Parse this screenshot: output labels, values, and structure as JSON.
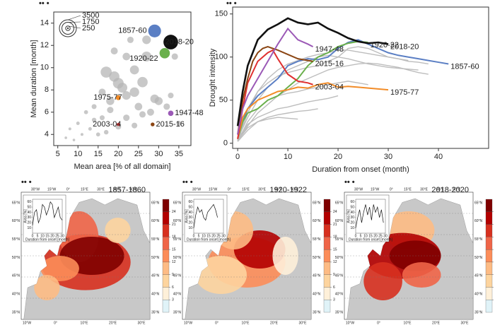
{
  "panel_mark": "•• •",
  "map_labels": {
    "top": [
      "30°W",
      "15°W",
      "0°",
      "15°E",
      "30°E",
      "45°E",
      "60°E"
    ],
    "left": [
      "65°N",
      "60°N",
      "55°N",
      "50°N",
      "45°N",
      "40°N",
      "35°N"
    ],
    "bottom": [
      "10°W",
      "0°",
      "10°E",
      "20°E",
      "30°E"
    ]
  },
  "chart_data": [
    {
      "type": "scatter",
      "xlabel": "Mean area [% of all domain]",
      "ylabel": "Mean duration [month]",
      "xlim": [
        4,
        38
      ],
      "ylim": [
        3,
        15
      ],
      "xticks": [
        5,
        10,
        15,
        20,
        25,
        30,
        35
      ],
      "yticks": [
        4,
        6,
        8,
        10,
        12,
        14
      ],
      "size_legend": [
        3500,
        1750,
        250
      ],
      "series": [
        {
          "color": "#b5b5b5",
          "x": [
            17,
            19,
            21,
            22,
            24,
            26,
            24,
            27,
            27,
            22,
            19,
            23,
            20,
            18,
            16,
            25,
            29,
            30,
            28,
            32,
            26,
            22,
            24,
            20,
            16,
            14,
            12,
            10,
            8,
            11,
            13,
            7,
            9,
            15,
            17,
            14,
            35,
            33,
            34,
            18
          ],
          "values": [
            9.6,
            9.2,
            8.2,
            7.5,
            7.8,
            8.7,
            9.8,
            12.5,
            11,
            11,
            11.5,
            12.5,
            8.6,
            7,
            7.8,
            6.5,
            7.2,
            7,
            6,
            6.5,
            5.8,
            5.5,
            4.8,
            4.7,
            5.5,
            6.5,
            6,
            5,
            4.5,
            4,
            4.5,
            3.7,
            3.5,
            4,
            4.2,
            5.3,
            5,
            7.5,
            11,
            6.2
          ],
          "sizes": [
            1500,
            1300,
            1200,
            900,
            1100,
            1300,
            1000,
            900,
            1200,
            700,
            600,
            500,
            1400,
            800,
            600,
            700,
            900,
            800,
            600,
            500,
            500,
            500,
            400,
            400,
            300,
            300,
            200,
            150,
            100,
            100,
            150,
            80,
            80,
            200,
            250,
            250,
            300,
            400,
            500,
            500
          ]
        },
        {
          "name": "1857-60",
          "color": "#5b7fc4",
          "x": [
            29
          ],
          "values": [
            13.3
          ],
          "sizes": [
            2000
          ]
        },
        {
          "name": "2018-20",
          "color": "#111111",
          "x": [
            33
          ],
          "values": [
            12.3
          ],
          "sizes": [
            2600
          ]
        },
        {
          "name": "1920-22",
          "color": "#6ab04c",
          "x": [
            31.5
          ],
          "values": [
            11.3
          ],
          "sizes": [
            1300
          ]
        },
        {
          "name": "1975-77",
          "color": "#f28c28",
          "x": [
            20
          ],
          "values": [
            7.3
          ],
          "sizes": [
            300
          ]
        },
        {
          "name": "1947-48",
          "color": "#9b59b6",
          "x": [
            33
          ],
          "values": [
            5.9
          ],
          "sizes": [
            350
          ]
        },
        {
          "name": "2003-04",
          "color": "#e03030",
          "x": [
            20
          ],
          "values": [
            4.9
          ],
          "sizes": [
            120
          ]
        },
        {
          "name": "2015-16",
          "color": "#8b4513",
          "x": [
            28.5
          ],
          "values": [
            4.9
          ],
          "sizes": [
            180
          ]
        }
      ]
    },
    {
      "type": "line",
      "xlabel": "Duration from onset (month)",
      "ylabel": "Drought intensity",
      "xlim": [
        -1,
        50
      ],
      "ylim": [
        -6,
        158
      ],
      "xticks": [
        0,
        10,
        20,
        30,
        40
      ],
      "yticks": [
        0,
        50,
        100,
        150
      ],
      "series": [
        {
          "color": "#bdbdbd",
          "x": [
            0,
            2,
            4,
            6,
            8,
            10,
            12,
            14,
            16,
            18,
            20,
            22,
            24,
            26,
            28,
            30,
            32,
            34,
            36
          ],
          "values": [
            5,
            30,
            50,
            65,
            75,
            85,
            90,
            95,
            100,
            102,
            100,
            98,
            95,
            92,
            90,
            88,
            87,
            86,
            85
          ]
        },
        {
          "color": "#bdbdbd",
          "x": [
            0,
            2,
            4,
            6,
            8,
            10,
            12,
            14,
            16,
            18,
            20,
            22,
            24,
            26,
            28,
            30,
            32,
            34,
            36,
            38
          ],
          "values": [
            3,
            20,
            35,
            45,
            55,
            62,
            70,
            75,
            80,
            85,
            88,
            90,
            92,
            93,
            92,
            90,
            88,
            85,
            82,
            80
          ]
        },
        {
          "color": "#bdbdbd",
          "x": [
            0,
            2,
            4,
            6,
            8,
            10,
            12,
            14,
            16,
            18,
            20,
            22,
            24,
            26
          ],
          "values": [
            2,
            25,
            40,
            50,
            55,
            58,
            60,
            63,
            65,
            68,
            70,
            72,
            70,
            68
          ]
        },
        {
          "color": "#bdbdbd",
          "x": [
            0,
            2,
            4,
            6,
            8,
            10,
            12,
            14,
            16,
            18,
            20
          ],
          "values": [
            5,
            22,
            30,
            35,
            40,
            42,
            45,
            48,
            50,
            52,
            55
          ]
        },
        {
          "color": "#bdbdbd",
          "x": [
            0,
            2,
            4,
            6,
            8,
            10,
            12,
            14,
            16,
            18,
            20,
            22,
            24,
            26,
            28,
            30,
            32,
            34
          ],
          "values": [
            3,
            35,
            60,
            75,
            85,
            92,
            96,
            100,
            103,
            105,
            108,
            108,
            106,
            104,
            102,
            100,
            98,
            96
          ]
        },
        {
          "color": "#bdbdbd",
          "x": [
            0,
            2,
            4,
            6,
            8,
            10,
            12,
            14,
            16
          ],
          "values": [
            2,
            15,
            25,
            30,
            33,
            35,
            37,
            38,
            40
          ]
        },
        {
          "color": "#bdbdbd",
          "x": [
            0,
            2,
            4,
            6,
            8,
            10,
            12,
            14,
            16,
            18,
            20,
            22,
            24,
            26,
            28,
            30,
            32,
            34,
            36,
            38
          ],
          "values": [
            4,
            40,
            60,
            70,
            78,
            82,
            85,
            88,
            90,
            95,
            100,
            110,
            112,
            110,
            105,
            100,
            98,
            95,
            94,
            92
          ]
        },
        {
          "color": "#bdbdbd",
          "x": [
            0,
            2,
            4,
            6,
            8,
            10,
            12
          ],
          "values": [
            3,
            18,
            25,
            28,
            30,
            29,
            28
          ]
        },
        {
          "name": "1857-60",
          "color": "#5b7fc4",
          "x": [
            0,
            1,
            2,
            4,
            6,
            8,
            10,
            12,
            14,
            16,
            18,
            20,
            22,
            24,
            26,
            28,
            30,
            32,
            34,
            36,
            38,
            40,
            42
          ],
          "values": [
            5,
            25,
            40,
            55,
            65,
            75,
            90,
            95,
            98,
            97,
            100,
            110,
            117,
            120,
            115,
            110,
            105,
            102,
            100,
            98,
            96,
            94,
            92
          ]
        },
        {
          "name": "1920-22",
          "color": "#6ab04c",
          "x": [
            0,
            1,
            2,
            4,
            6,
            8,
            10,
            12,
            14,
            16,
            18,
            20,
            22,
            24,
            26
          ],
          "values": [
            5,
            25,
            35,
            40,
            50,
            55,
            65,
            75,
            90,
            100,
            105,
            112,
            116,
            118,
            117
          ]
        },
        {
          "name": "1975-77",
          "color": "#f28c28",
          "x": [
            0,
            1,
            2,
            4,
            6,
            8,
            10,
            12,
            14,
            16,
            18,
            20,
            22,
            24,
            26,
            28,
            30
          ],
          "values": [
            5,
            30,
            40,
            50,
            55,
            60,
            62,
            65,
            64,
            68,
            70,
            65,
            66,
            65,
            64,
            63,
            62
          ]
        },
        {
          "name": "2003-04",
          "color": "#e03030",
          "x": [
            0,
            1,
            2,
            4,
            6,
            7,
            8,
            10,
            12,
            14,
            15
          ],
          "values": [
            5,
            40,
            70,
            95,
            105,
            108,
            98,
            80,
            72,
            70,
            68
          ]
        },
        {
          "name": "2015-16",
          "color": "#8b4513",
          "x": [
            0,
            1,
            2,
            3,
            4,
            5,
            6,
            8,
            10,
            12,
            14,
            15
          ],
          "values": [
            10,
            50,
            75,
            95,
            105,
            110,
            112,
            108,
            103,
            98,
            96,
            95
          ]
        },
        {
          "name": "1947-48",
          "color": "#9b59b6",
          "x": [
            0,
            1,
            2,
            4,
            6,
            8,
            10,
            12,
            14,
            15
          ],
          "values": [
            10,
            40,
            55,
            75,
            95,
            115,
            133,
            120,
            115,
            112
          ]
        },
        {
          "name": "2018-20",
          "color": "#111111",
          "x": [
            0,
            1,
            2,
            3,
            4,
            6,
            8,
            10,
            12,
            14,
            16,
            18,
            20,
            22,
            24,
            26,
            28,
            30
          ],
          "values": [
            20,
            60,
            90,
            105,
            120,
            132,
            138,
            145,
            140,
            138,
            140,
            133,
            128,
            122,
            118,
            116,
            117,
            115
          ]
        }
      ]
    },
    {
      "type": "map",
      "title": "1857-1860",
      "colorbar": {
        "ylim": [
          0,
          27
        ],
        "ticks": [
          3,
          6,
          9,
          12,
          15,
          18,
          21,
          24
        ],
        "colors": [
          "#e0f3f8",
          "#fef0d9",
          "#fdd49e",
          "#fdbb84",
          "#fc8d59",
          "#ef6548",
          "#d7301f",
          "#b30000",
          "#7f0000"
        ]
      },
      "inset": {
        "xlabel": "Duration from onset [month]",
        "ylabel": "Area [%]",
        "xlim": [
          0,
          30
        ],
        "ylim": [
          0,
          65
        ],
        "xticks": [
          0,
          5,
          10,
          15,
          20,
          25,
          30
        ],
        "yticks": [
          10,
          20,
          30,
          40,
          50,
          60
        ],
        "x": [
          0,
          2,
          4,
          6,
          8,
          10,
          12,
          14,
          16,
          18,
          20,
          22,
          24,
          26,
          28,
          30
        ],
        "values": [
          15,
          40,
          45,
          20,
          30,
          55,
          50,
          35,
          45,
          60,
          55,
          30,
          40,
          50,
          30,
          25
        ]
      }
    },
    {
      "type": "map",
      "title": "1920-1922",
      "colorbar": {
        "ylim": [
          0,
          27
        ],
        "ticks": [
          3,
          6,
          9,
          12,
          15,
          18,
          21,
          24
        ],
        "colors": [
          "#e0f3f8",
          "#fef0d9",
          "#fdd49e",
          "#fdbb84",
          "#fc8d59",
          "#ef6548",
          "#d7301f",
          "#b30000",
          "#7f0000"
        ]
      },
      "inset": {
        "xlabel": "Duration from onset [month]",
        "ylabel": "Area [%]",
        "xlim": [
          0,
          30
        ],
        "ylim": [
          0,
          65
        ],
        "xticks": [
          0,
          5,
          10,
          15,
          20,
          25,
          30
        ],
        "yticks": [
          10,
          20,
          30,
          40,
          50,
          60
        ],
        "x": [
          0,
          2,
          4,
          6,
          8,
          10,
          12,
          14,
          16,
          18,
          20,
          22,
          24
        ],
        "values": [
          10,
          35,
          50,
          40,
          45,
          30,
          25,
          40,
          45,
          50,
          55,
          45,
          30
        ]
      }
    },
    {
      "type": "map",
      "title": "2018-2020",
      "colorbar": {
        "ylim": [
          0,
          27
        ],
        "ticks": [
          3,
          6,
          9,
          12,
          15,
          18,
          21,
          24
        ],
        "colors": [
          "#e0f3f8",
          "#fef0d9",
          "#fdd49e",
          "#fdbb84",
          "#fc8d59",
          "#ef6548",
          "#d7301f",
          "#b30000",
          "#7f0000"
        ]
      },
      "inset": {
        "xlabel": "Duration from onset [month]",
        "ylabel": "Area [%]",
        "xlim": [
          0,
          30
        ],
        "ylim": [
          0,
          65
        ],
        "xticks": [
          0,
          5,
          10,
          15,
          20,
          25,
          30
        ],
        "yticks": [
          10,
          20,
          30,
          40,
          50,
          60
        ],
        "x": [
          0,
          2,
          4,
          6,
          8,
          10,
          12,
          14,
          16,
          18,
          20,
          22,
          24,
          26,
          28
        ],
        "values": [
          10,
          30,
          45,
          20,
          40,
          55,
          35,
          50,
          25,
          55,
          40,
          50,
          30,
          45,
          20
        ]
      }
    }
  ]
}
